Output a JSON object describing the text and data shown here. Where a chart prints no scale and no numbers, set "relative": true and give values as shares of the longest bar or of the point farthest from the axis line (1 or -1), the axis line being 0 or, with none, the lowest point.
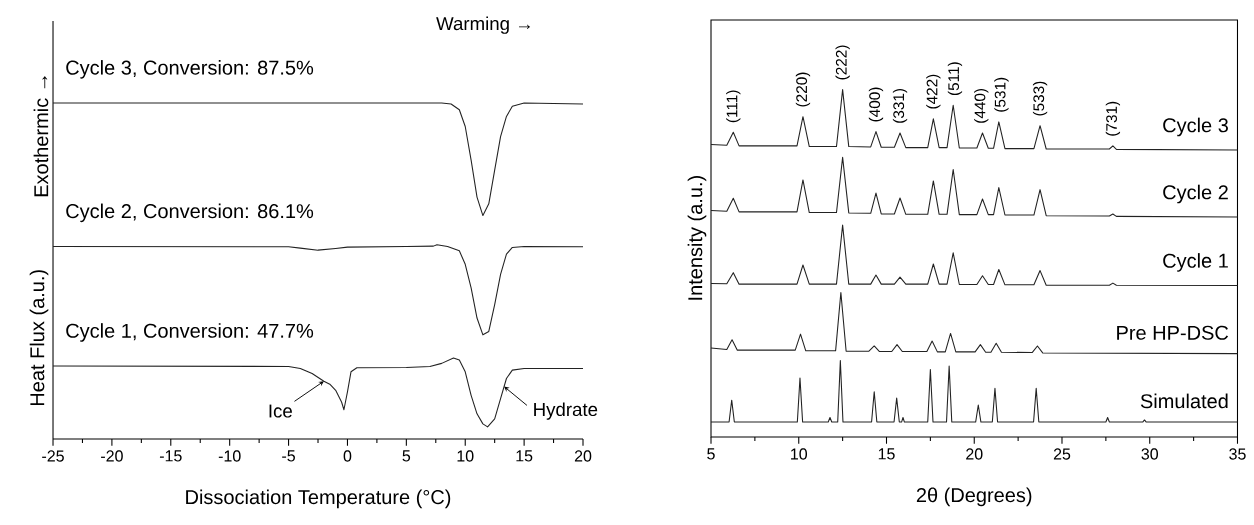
{
  "chart_data": [
    {
      "type": "line",
      "relative": true,
      "xlabel": "Dissociation Temperature (°C)",
      "ylabel": "Heat Flux (a.u.)",
      "tick_labels": "x",
      "xlim": [
        -25,
        20
      ],
      "xticks": [
        -25,
        -20,
        -15,
        -10,
        -5,
        0,
        5,
        10,
        15,
        20
      ],
      "annotations": [
        "Warming →",
        "Exothermic →",
        {
          "text": "Ice",
          "x": -2,
          "y": 0.172
        },
        {
          "text": "Hydrate",
          "x": 13.3,
          "y": 0.156
        }
      ],
      "series": [
        {
          "name": "Cycle 3, Conversion: 87.5%",
          "color": "#222222",
          "x": [
            -25,
            5,
            8,
            8.8,
            9.5,
            10,
            10.5,
            11,
            11.5,
            12,
            12.5,
            13,
            13.5,
            14,
            15,
            20
          ],
          "values": [
            1.0,
            1.0,
            1.0,
            0.997,
            0.98,
            0.93,
            0.83,
            0.72,
            0.665,
            0.7,
            0.8,
            0.9,
            0.96,
            0.99,
            1.0,
            0.997
          ]
        },
        {
          "name": "Cycle 2, Conversion: 86.1%",
          "color": "#222222",
          "x": [
            -25,
            -5,
            -4,
            -2.5,
            -1,
            0,
            5,
            7.3,
            7.6,
            8.5,
            9.5,
            10,
            10.5,
            11,
            11.5,
            12,
            12.5,
            13,
            13.5,
            14,
            15,
            20
          ],
          "values": [
            0.573,
            0.572,
            0.568,
            0.562,
            0.567,
            0.571,
            0.573,
            0.574,
            0.578,
            0.573,
            0.56,
            0.52,
            0.45,
            0.36,
            0.31,
            0.32,
            0.4,
            0.49,
            0.55,
            0.57,
            0.573,
            0.572
          ]
        },
        {
          "name": "Cycle 1, Conversion: 47.7%",
          "color": "#222222",
          "x": [
            -25,
            -5,
            -4,
            -3,
            -2,
            -1.5,
            -1,
            -0.5,
            -0.3,
            0,
            0.3,
            0.8,
            5,
            7,
            8,
            9,
            9.5,
            10,
            10.5,
            11,
            11.5,
            11.9,
            12.5,
            13,
            13.5,
            14,
            15,
            20
          ],
          "values": [
            0.217,
            0.216,
            0.21,
            0.195,
            0.172,
            0.163,
            0.145,
            0.11,
            0.087,
            0.14,
            0.2,
            0.212,
            0.213,
            0.216,
            0.225,
            0.241,
            0.235,
            0.2,
            0.13,
            0.075,
            0.045,
            0.036,
            0.06,
            0.12,
            0.18,
            0.205,
            0.21,
            0.21
          ]
        }
      ]
    },
    {
      "type": "line",
      "relative": true,
      "xlabel": "2θ (Degrees)",
      "ylabel": "Intensity (a.u.)",
      "tick_labels": "x",
      "xlim": [
        5,
        35
      ],
      "xticks": [
        5,
        10,
        15,
        20,
        25,
        30,
        35
      ],
      "annotations": [
        {
          "text": "(111)",
          "x": 6.27,
          "y": 0.877
        },
        {
          "text": "(220)",
          "x": 10.24,
          "y": 0.922
        },
        {
          "text": "(222)",
          "x": 12.5,
          "y": 1.0
        },
        {
          "text": "(400)",
          "x": 14.4,
          "y": 0.879
        },
        {
          "text": "(331)",
          "x": 15.77,
          "y": 0.875
        },
        {
          "text": "(422)",
          "x": 17.67,
          "y": 0.916
        },
        {
          "text": "(511)",
          "x": 18.9,
          "y": 0.955
        },
        {
          "text": "(440)",
          "x": 20.4,
          "y": 0.875
        },
        {
          "text": "(531)",
          "x": 21.55,
          "y": 0.907
        },
        {
          "text": "(533)",
          "x": 23.75,
          "y": 0.896
        },
        {
          "text": "(731)",
          "x": 27.9,
          "y": 0.838
        }
      ],
      "series": [
        {
          "name": "Cycle 3",
          "color": "#222222",
          "x": [
            5,
            5.9,
            6.27,
            6.6,
            9.9,
            10.24,
            10.6,
            12.15,
            12.5,
            12.85,
            14.1,
            14.4,
            14.7,
            15.45,
            15.77,
            16.1,
            17.35,
            17.67,
            18.0,
            18.45,
            18.8,
            19.15,
            20.15,
            20.47,
            20.8,
            21.1,
            21.4,
            21.75,
            23.4,
            23.75,
            24.1,
            27.7,
            27.9,
            28.1,
            35
          ],
          "values": [
            0.842,
            0.84,
            0.877,
            0.838,
            0.838,
            0.922,
            0.836,
            0.836,
            1.0,
            0.836,
            0.835,
            0.879,
            0.834,
            0.834,
            0.875,
            0.833,
            0.833,
            0.916,
            0.833,
            0.833,
            0.955,
            0.832,
            0.832,
            0.875,
            0.831,
            0.831,
            0.907,
            0.83,
            0.83,
            0.896,
            0.829,
            0.829,
            0.838,
            0.828,
            0.826
          ]
        },
        {
          "name": "Cycle 2",
          "color": "#222222",
          "x": [
            5,
            5.9,
            6.27,
            6.6,
            9.9,
            10.24,
            10.6,
            12.15,
            12.5,
            12.85,
            14.1,
            14.4,
            14.7,
            15.45,
            15.77,
            16.1,
            17.35,
            17.67,
            18.0,
            18.45,
            18.8,
            19.15,
            20.15,
            20.47,
            20.8,
            21.1,
            21.4,
            21.75,
            23.4,
            23.75,
            24.1,
            27.7,
            27.9,
            28.1,
            35
          ],
          "values": [
            0.652,
            0.65,
            0.687,
            0.648,
            0.648,
            0.74,
            0.646,
            0.646,
            0.805,
            0.645,
            0.644,
            0.702,
            0.642,
            0.642,
            0.688,
            0.641,
            0.641,
            0.737,
            0.641,
            0.641,
            0.77,
            0.64,
            0.64,
            0.685,
            0.64,
            0.64,
            0.718,
            0.639,
            0.639,
            0.712,
            0.637,
            0.636,
            0.642,
            0.635,
            0.633
          ]
        },
        {
          "name": "Cycle 1",
          "color": "#222222",
          "x": [
            5,
            5.9,
            6.27,
            6.6,
            9.9,
            10.24,
            10.6,
            12.15,
            12.5,
            12.85,
            14.1,
            14.4,
            14.7,
            15.45,
            15.77,
            16.1,
            17.35,
            17.67,
            18.0,
            18.45,
            18.8,
            19.15,
            20.15,
            20.47,
            20.8,
            21.1,
            21.4,
            21.75,
            23.4,
            23.75,
            24.1,
            27.7,
            27.9,
            28.1,
            35
          ],
          "values": [
            0.442,
            0.441,
            0.473,
            0.44,
            0.44,
            0.495,
            0.44,
            0.44,
            0.61,
            0.44,
            0.44,
            0.466,
            0.44,
            0.44,
            0.46,
            0.44,
            0.44,
            0.498,
            0.44,
            0.44,
            0.53,
            0.439,
            0.439,
            0.464,
            0.439,
            0.439,
            0.482,
            0.438,
            0.438,
            0.479,
            0.437,
            0.437,
            0.443,
            0.437,
            0.436
          ]
        },
        {
          "name": "Pre HP-DSC",
          "color": "#222222",
          "x": [
            5,
            5.9,
            6.2,
            6.5,
            9.8,
            10.1,
            10.4,
            12.1,
            12.4,
            12.7,
            14.0,
            14.3,
            14.6,
            15.3,
            15.6,
            15.9,
            17.3,
            17.6,
            17.9,
            18.35,
            18.65,
            18.95,
            20.05,
            20.35,
            20.65,
            20.95,
            21.25,
            21.55,
            23.3,
            23.6,
            23.9,
            35
          ],
          "values": [
            0.256,
            0.252,
            0.28,
            0.25,
            0.25,
            0.296,
            0.248,
            0.248,
            0.416,
            0.247,
            0.247,
            0.262,
            0.246,
            0.246,
            0.266,
            0.246,
            0.246,
            0.276,
            0.245,
            0.245,
            0.298,
            0.245,
            0.245,
            0.266,
            0.244,
            0.244,
            0.27,
            0.244,
            0.243,
            0.262,
            0.242,
            0.24
          ]
        },
        {
          "name": "Simulated",
          "color": "#222222",
          "x": [
            5,
            6.03,
            6.18,
            6.33,
            9.92,
            10.07,
            10.22,
            11.68,
            11.78,
            11.88,
            12.22,
            12.37,
            12.52,
            14.15,
            14.3,
            14.45,
            15.43,
            15.58,
            15.73,
            15.86,
            15.94,
            16.02,
            17.35,
            17.5,
            17.65,
            18.42,
            18.57,
            18.72,
            20.08,
            20.23,
            20.38,
            21.03,
            21.18,
            21.33,
            23.38,
            23.53,
            23.68,
            27.5,
            27.6,
            27.7,
            29.6,
            29.7,
            29.8,
            35
          ],
          "values": [
            0.043,
            0.043,
            0.106,
            0.043,
            0.043,
            0.17,
            0.043,
            0.043,
            0.056,
            0.043,
            0.043,
            0.22,
            0.043,
            0.043,
            0.13,
            0.043,
            0.043,
            0.112,
            0.043,
            0.043,
            0.056,
            0.043,
            0.043,
            0.194,
            0.043,
            0.043,
            0.204,
            0.043,
            0.043,
            0.092,
            0.043,
            0.043,
            0.14,
            0.043,
            0.043,
            0.14,
            0.043,
            0.043,
            0.056,
            0.043,
            0.043,
            0.049,
            0.043,
            0.043
          ]
        }
      ]
    }
  ]
}
